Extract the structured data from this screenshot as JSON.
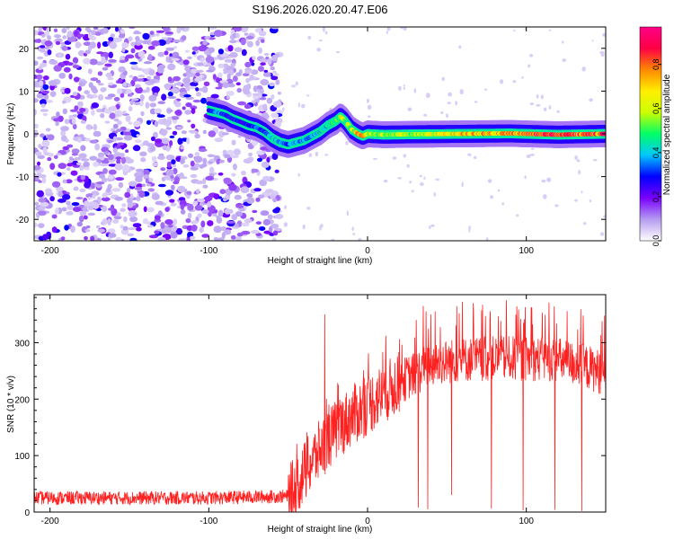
{
  "title": "S196.2026.020.20.47.E06",
  "chart_data": [
    {
      "type": "heatmap",
      "name": "spectrogram",
      "xlabel": "Height of straight line (km)",
      "ylabel": "Frequency (Hz)",
      "xlim": [
        -210,
        150
      ],
      "ylim": [
        -25,
        25
      ],
      "x_ticks": [
        -200,
        -100,
        0,
        100
      ],
      "x_tick_labels": [
        "-200",
        "-100",
        "0",
        "100"
      ],
      "y_ticks": [
        20,
        10,
        0,
        -10,
        -20
      ],
      "y_tick_labels": [
        "20",
        "10",
        "0",
        "-10",
        "-20"
      ],
      "colorbar": {
        "label": "Normalized spectral amplitude",
        "range": [
          0,
          0.97
        ],
        "ticks": [
          0.0,
          0.2,
          0.4,
          0.6,
          0.8
        ],
        "tick_labels": [
          "0.0",
          "0.2",
          "0.4",
          "0.6",
          "0.8"
        ],
        "colors": [
          "#ffffff",
          "#b59cf0",
          "#7a00ff",
          "#0000ff",
          "#00c8ff",
          "#00ff66",
          "#ccff00",
          "#ffee00",
          "#ff8800",
          "#ff0044",
          "#ff0088"
        ]
      },
      "ridge": {
        "x": [
          -100,
          -95,
          -90,
          -85,
          -80,
          -75,
          -70,
          -65,
          -60,
          -55,
          -50,
          -45,
          -40,
          -35,
          -30,
          -25,
          -20,
          -17,
          -14,
          -10,
          -6,
          -3,
          0,
          10,
          30,
          60,
          90,
          120,
          150
        ],
        "freq": [
          5.5,
          5,
          4.5,
          3.5,
          2.8,
          2,
          1.5,
          0.5,
          -1,
          -2,
          -2.5,
          -2,
          -1.5,
          -0.5,
          0.5,
          2,
          3,
          4,
          3,
          1,
          0,
          -0.5,
          0,
          -0.2,
          -0.1,
          0,
          0.1,
          -0.2,
          0
        ],
        "amplitude": [
          0.25,
          0.45,
          0.3,
          0.3,
          0.3,
          0.3,
          0.35,
          0.3,
          0.45,
          0.4,
          0.35,
          0.4,
          0.4,
          0.4,
          0.45,
          0.45,
          0.5,
          0.7,
          0.6,
          0.6,
          0.75,
          0.85,
          0.6,
          0.6,
          0.6,
          0.75,
          0.8,
          0.9,
          0.9
        ]
      },
      "noise_region": [
        -210,
        -55
      ]
    },
    {
      "type": "line",
      "name": "snr",
      "xlabel": "Height of straight line (km)",
      "ylabel": "SNR (10 * v/v)",
      "xlim": [
        -210,
        150
      ],
      "ylim": [
        0,
        385
      ],
      "x_ticks": [
        -200,
        -100,
        0,
        100
      ],
      "x_tick_labels": [
        "-200",
        "-100",
        "0",
        "100"
      ],
      "y_ticks": [
        0,
        100,
        200,
        300
      ],
      "y_tick_labels": [
        "0",
        "100",
        "200",
        "300"
      ],
      "color": "#ff2020",
      "trend": {
        "x": [
          -210,
          -100,
          -50,
          -45,
          -40,
          -30,
          -20,
          -10,
          0,
          10,
          20,
          30,
          40,
          60,
          80,
          100,
          120,
          140,
          150
        ],
        "y": [
          25,
          25,
          28,
          45,
          70,
          110,
          145,
          170,
          190,
          210,
          230,
          245,
          262,
          270,
          272,
          272,
          270,
          255,
          245
        ]
      },
      "spikes": [
        {
          "x": -27,
          "y": 350
        },
        {
          "x": 35,
          "y": 365
        },
        {
          "x": 40,
          "y": 350
        }
      ],
      "dropouts": [
        {
          "x": 32,
          "y": 8
        },
        {
          "x": 38,
          "y": 5
        },
        {
          "x": 53,
          "y": 30
        },
        {
          "x": 78,
          "y": 6
        },
        {
          "x": 98,
          "y": 3
        },
        {
          "x": 118,
          "y": 4
        },
        {
          "x": 135,
          "y": 2
        }
      ]
    }
  ]
}
